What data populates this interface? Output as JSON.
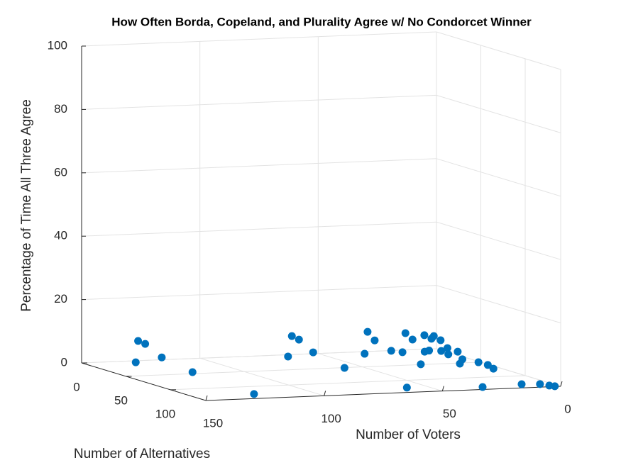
{
  "chart_data": {
    "type": "scatter3d",
    "title": "How Often Borda, Copeland, and Plurality Agree w/ No Condorcet Winner",
    "x_label": "Number of Voters",
    "y_label": "Number of Alternatives",
    "z_label": "Percentage of Time All Three Agree",
    "xlim": [
      0,
      150
    ],
    "ylim": [
      0,
      140
    ],
    "zlim": [
      0,
      100
    ],
    "xticks": [
      0,
      50,
      100,
      150
    ],
    "yticks": [
      0,
      50,
      100
    ],
    "zticks": [
      0,
      20,
      40,
      60,
      80,
      100
    ],
    "grid": true,
    "series": [
      {
        "color": "#0072bd",
        "x": [
          129,
          128,
          125,
          118,
          120,
          124,
          65,
          63,
          60,
          54,
          58,
          33,
          31,
          28,
          21,
          17,
          15,
          59,
          12,
          25,
          8,
          7,
          5,
          4,
          3,
          1,
          2,
          1,
          2.5,
          0.4,
          9.6,
          3.3,
          1,
          30,
          0.8,
          3.3,
          12,
          5,
          3.3,
          2.1
        ],
        "y": [
          5,
          5,
          5,
          5,
          45,
          125,
          6,
          5,
          5,
          5,
          51,
          7,
          5,
          5,
          5,
          7,
          5,
          124,
          5,
          49,
          8,
          5,
          5,
          5,
          5,
          8,
          10,
          15,
          20,
          25,
          52,
          38,
          50,
          132,
          60,
          73,
          128,
          130,
          136,
          139
        ],
        "z": [
          0,
          6.7,
          5.7,
          1.2,
          0,
          0,
          0,
          6.3,
          5.1,
          0.9,
          0,
          0,
          6.7,
          3.9,
          0.4,
          0,
          5.8,
          0,
          3.7,
          0,
          0,
          4.9,
          0,
          3.7,
          4.5,
          0,
          3.6,
          1.5,
          0,
          1.2,
          0,
          0,
          0,
          0,
          0,
          0,
          0,
          0,
          0,
          0
        ]
      }
    ]
  }
}
